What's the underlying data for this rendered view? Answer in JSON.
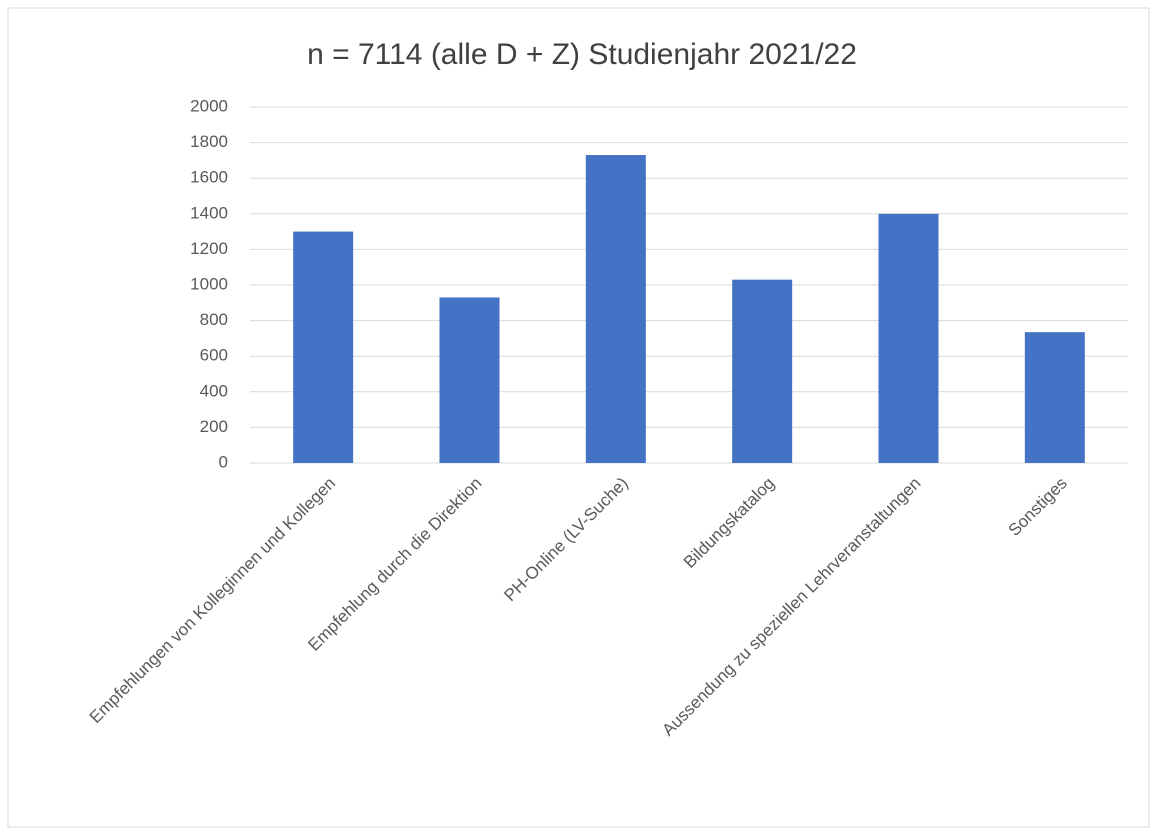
{
  "chart_data": {
    "type": "bar",
    "title": "n = 7114 (alle D + Z) Studienjahr 2021/22",
    "categories": [
      "Empfehlungen von Kolleginnen und Kollegen",
      "Empfehlung durch die Direktion",
      "PH-Online (LV-Suche)",
      "Bildungskatalog",
      "Aussendung zu speziellen Lehrveranstaltungen",
      "Sonstiges"
    ],
    "values": [
      1300,
      930,
      1730,
      1030,
      1400,
      735
    ],
    "color": "#4472c4",
    "ylim": [
      0,
      2000
    ],
    "yticks": [
      0,
      200,
      400,
      600,
      800,
      1000,
      1200,
      1400,
      1600,
      1800,
      2000
    ],
    "grid": true
  }
}
